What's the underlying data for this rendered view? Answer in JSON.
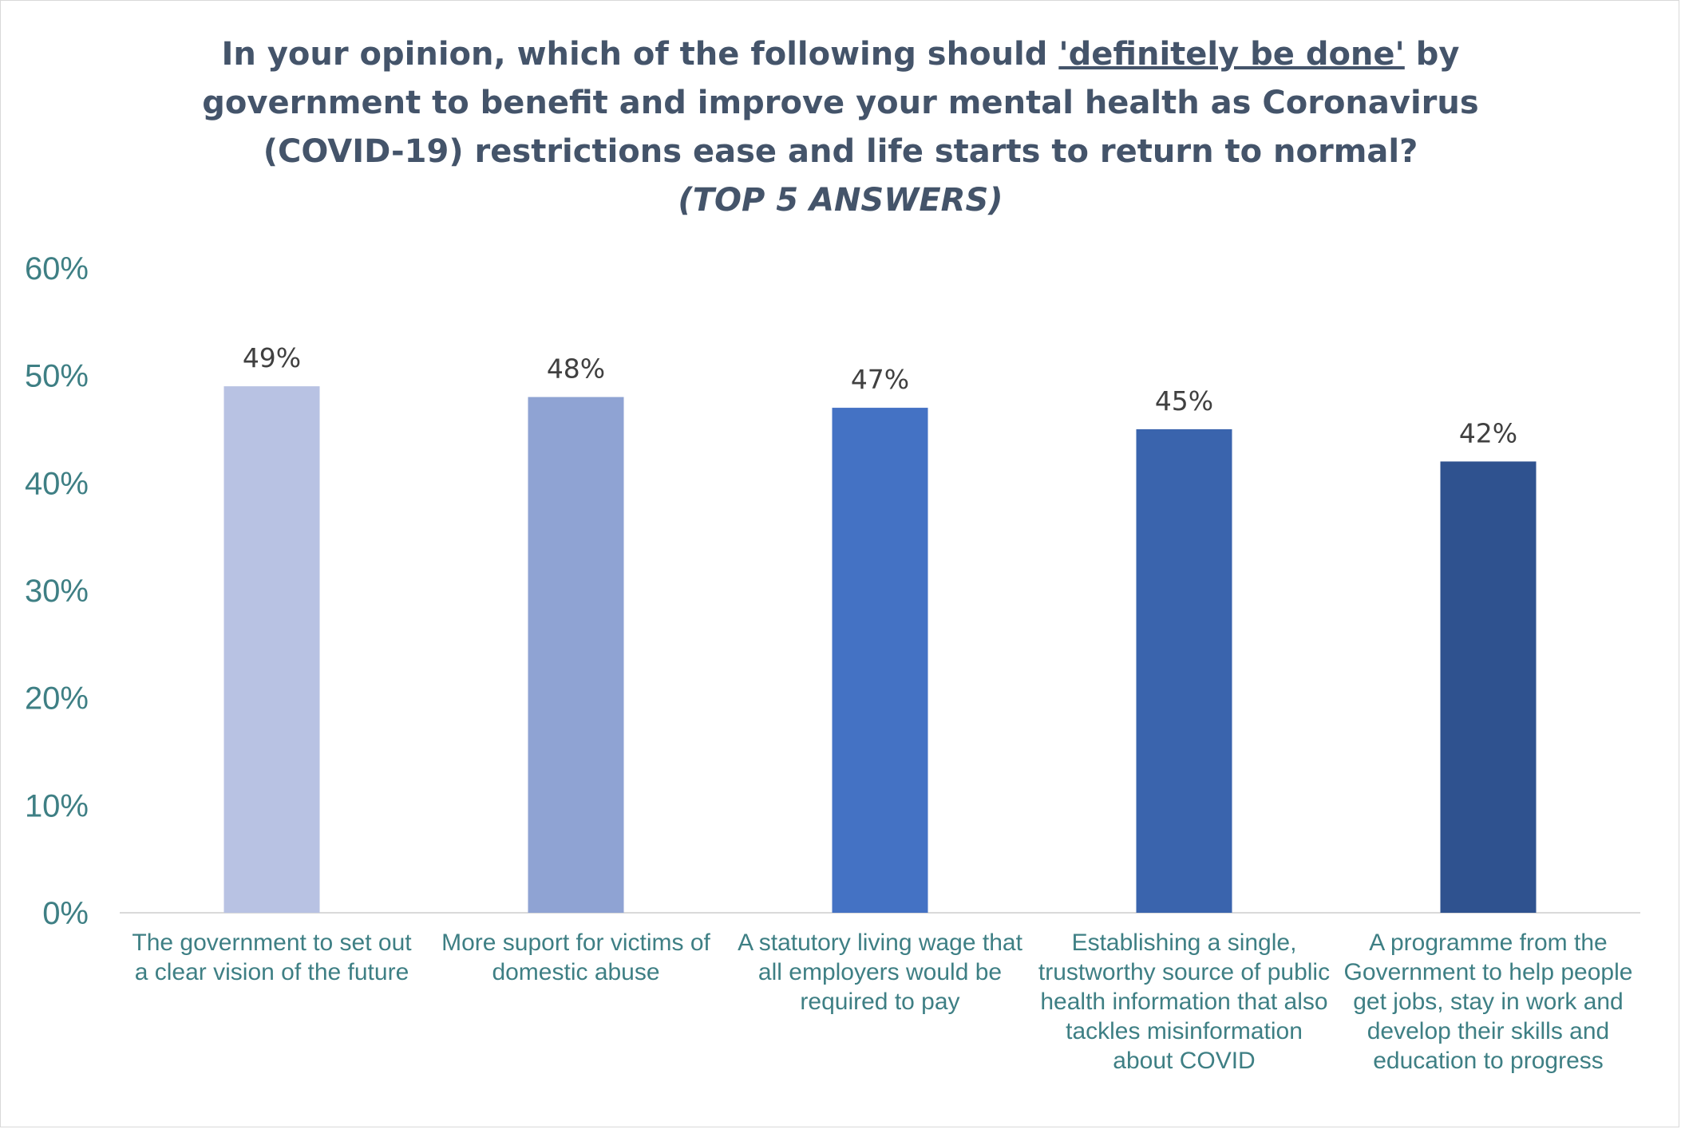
{
  "title": {
    "line1_pre": "In your opinion, which of the following should ",
    "line1_emph": "'definitely be done'",
    "line1_post": " by",
    "line2": "government to benefit and improve your mental health as Coronavirus",
    "line3": "(COVID-19) restrictions ease and life starts to return to normal?",
    "subtitle": "(TOP 5 ANSWERS)"
  },
  "chart_data": {
    "type": "bar",
    "categories": [
      "The government to set out a clear vision of the future",
      "More suport for victims of domestic abuse",
      "A statutory living wage that all employers would be required to pay",
      "Establishing a single, trustworthy source of public health information that also tackles misinformation about COVID",
      "A programme from the Government to help people get jobs, stay in work and develop their skills and education to progress"
    ],
    "values": [
      49,
      48,
      47,
      45,
      42
    ],
    "value_labels": [
      "49%",
      "48%",
      "47%",
      "45%",
      "42%"
    ],
    "bar_colors": [
      "#b8c2e3",
      "#8fa3d3",
      "#4472c4",
      "#3a64ad",
      "#2f528f"
    ],
    "ylim": [
      0,
      60
    ],
    "yticks": [
      0,
      10,
      20,
      30,
      40,
      50,
      60
    ],
    "ytick_labels": [
      "0%",
      "10%",
      "20%",
      "30%",
      "40%",
      "50%",
      "60%"
    ],
    "grid": false,
    "legend": "none",
    "xlabel": "",
    "ylabel": ""
  }
}
